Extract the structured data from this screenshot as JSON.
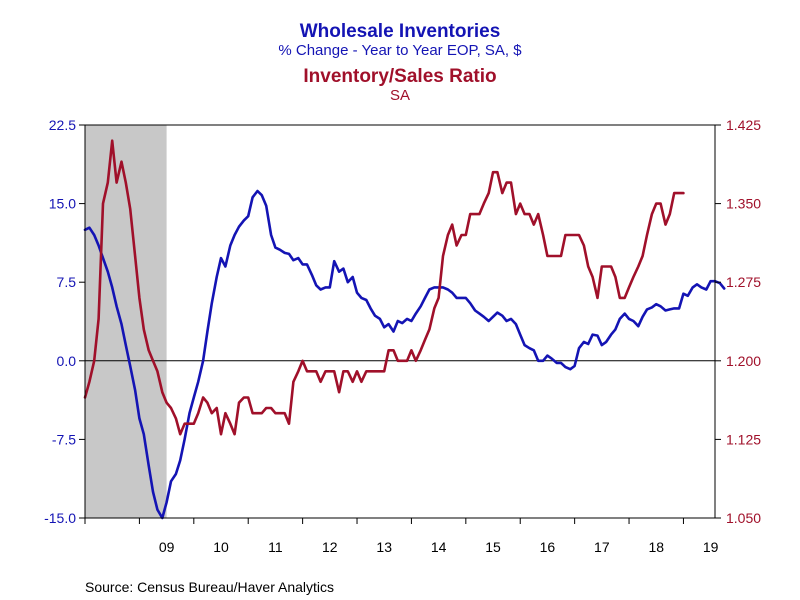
{
  "chart_data": {
    "type": "line",
    "title_lines": [
      {
        "text": "Wholesale Inventories",
        "color": "#1414b4",
        "role": "title"
      },
      {
        "text": "% Change - Year to Year     EOP, SA, $",
        "color": "#1414b4",
        "role": "subtitle"
      },
      {
        "text": "Inventory/Sales Ratio",
        "color": "#a0102a",
        "role": "title"
      },
      {
        "text": "SA",
        "color": "#a0102a",
        "role": "subtitle"
      }
    ],
    "source": "Source:  Census Bureau/Haver Analytics",
    "x_range": [
      2008.0,
      2019.58
    ],
    "x_ticks": [
      {
        "label": "09",
        "value": 2009.5
      },
      {
        "label": "10",
        "value": 2010.5
      },
      {
        "label": "11",
        "value": 2011.5
      },
      {
        "label": "12",
        "value": 2012.5
      },
      {
        "label": "13",
        "value": 2013.5
      },
      {
        "label": "14",
        "value": 2014.5
      },
      {
        "label": "15",
        "value": 2015.5
      },
      {
        "label": "16",
        "value": 2016.5
      },
      {
        "label": "17",
        "value": 2017.5
      },
      {
        "label": "18",
        "value": 2018.5
      },
      {
        "label": "19",
        "value": 2019.5
      }
    ],
    "recession_band": [
      2008.0,
      2009.5
    ],
    "y_left": {
      "range": [
        -15.0,
        22.5
      ],
      "ticks": [
        "22.5",
        "15.0",
        "7.5",
        "0.0",
        "-7.5",
        "-15.0"
      ],
      "color": "#1414b4"
    },
    "y_right": {
      "range": [
        1.05,
        1.425
      ],
      "ticks": [
        "1.425",
        "1.350",
        "1.275",
        "1.200",
        "1.125",
        "1.050"
      ],
      "color": "#a0102a"
    },
    "zero_line": 0.0,
    "series": [
      {
        "axis": "left",
        "color": "#1414b4",
        "points": [
          [
            2008.0,
            12.5
          ],
          [
            2008.08,
            12.7
          ],
          [
            2008.17,
            12.0
          ],
          [
            2008.25,
            11.0
          ],
          [
            2008.33,
            9.8
          ],
          [
            2008.42,
            8.5
          ],
          [
            2008.5,
            7.0
          ],
          [
            2008.58,
            5.2
          ],
          [
            2008.67,
            3.5
          ],
          [
            2008.75,
            1.5
          ],
          [
            2008.83,
            -0.5
          ],
          [
            2008.92,
            -2.8
          ],
          [
            2009.0,
            -5.5
          ],
          [
            2009.08,
            -7.0
          ],
          [
            2009.17,
            -10.0
          ],
          [
            2009.25,
            -12.5
          ],
          [
            2009.33,
            -14.2
          ],
          [
            2009.42,
            -15.0
          ],
          [
            2009.5,
            -13.5
          ],
          [
            2009.58,
            -11.5
          ],
          [
            2009.67,
            -10.8
          ],
          [
            2009.75,
            -9.5
          ],
          [
            2009.83,
            -7.5
          ],
          [
            2009.92,
            -5.0
          ],
          [
            2010.0,
            -3.5
          ],
          [
            2010.08,
            -2.0
          ],
          [
            2010.17,
            0.0
          ],
          [
            2010.25,
            2.8
          ],
          [
            2010.33,
            5.5
          ],
          [
            2010.42,
            8.0
          ],
          [
            2010.5,
            9.8
          ],
          [
            2010.58,
            9.0
          ],
          [
            2010.67,
            11.0
          ],
          [
            2010.75,
            12.0
          ],
          [
            2010.83,
            12.8
          ],
          [
            2010.92,
            13.4
          ],
          [
            2011.0,
            13.8
          ],
          [
            2011.08,
            15.6
          ],
          [
            2011.17,
            16.2
          ],
          [
            2011.25,
            15.8
          ],
          [
            2011.33,
            14.8
          ],
          [
            2011.42,
            12.0
          ],
          [
            2011.5,
            10.8
          ],
          [
            2011.58,
            10.6
          ],
          [
            2011.67,
            10.3
          ],
          [
            2011.75,
            10.2
          ],
          [
            2011.83,
            9.6
          ],
          [
            2011.92,
            9.8
          ],
          [
            2012.0,
            9.2
          ],
          [
            2012.08,
            9.2
          ],
          [
            2012.17,
            8.2
          ],
          [
            2012.25,
            7.2
          ],
          [
            2012.33,
            6.8
          ],
          [
            2012.42,
            7.0
          ],
          [
            2012.5,
            7.0
          ],
          [
            2012.58,
            9.5
          ],
          [
            2012.67,
            8.5
          ],
          [
            2012.75,
            8.8
          ],
          [
            2012.83,
            7.5
          ],
          [
            2012.92,
            8.0
          ],
          [
            2013.0,
            6.5
          ],
          [
            2013.08,
            6.0
          ],
          [
            2013.17,
            5.8
          ],
          [
            2013.25,
            5.0
          ],
          [
            2013.33,
            4.3
          ],
          [
            2013.42,
            4.0
          ],
          [
            2013.5,
            3.2
          ],
          [
            2013.58,
            3.5
          ],
          [
            2013.67,
            2.8
          ],
          [
            2013.75,
            3.8
          ],
          [
            2013.83,
            3.6
          ],
          [
            2013.92,
            4.0
          ],
          [
            2014.0,
            3.8
          ],
          [
            2014.08,
            4.5
          ],
          [
            2014.17,
            5.2
          ],
          [
            2014.25,
            6.0
          ],
          [
            2014.33,
            6.8
          ],
          [
            2014.42,
            7.0
          ],
          [
            2014.5,
            7.0
          ],
          [
            2014.58,
            7.0
          ],
          [
            2014.67,
            6.8
          ],
          [
            2014.75,
            6.5
          ],
          [
            2014.83,
            6.0
          ],
          [
            2014.92,
            6.0
          ],
          [
            2015.0,
            6.0
          ],
          [
            2015.08,
            5.5
          ],
          [
            2015.17,
            4.8
          ],
          [
            2015.25,
            4.5
          ],
          [
            2015.33,
            4.2
          ],
          [
            2015.42,
            3.8
          ],
          [
            2015.5,
            4.2
          ],
          [
            2015.58,
            4.6
          ],
          [
            2015.67,
            4.3
          ],
          [
            2015.75,
            3.8
          ],
          [
            2015.83,
            4.0
          ],
          [
            2015.92,
            3.5
          ],
          [
            2016.0,
            2.5
          ],
          [
            2016.08,
            1.5
          ],
          [
            2016.17,
            1.2
          ],
          [
            2016.25,
            1.0
          ],
          [
            2016.33,
            0.0
          ],
          [
            2016.42,
            0.0
          ],
          [
            2016.5,
            0.5
          ],
          [
            2016.58,
            0.2
          ],
          [
            2016.67,
            -0.2
          ],
          [
            2016.75,
            -0.2
          ],
          [
            2016.83,
            -0.6
          ],
          [
            2016.92,
            -0.8
          ],
          [
            2017.0,
            -0.5
          ],
          [
            2017.08,
            1.2
          ],
          [
            2017.17,
            1.8
          ],
          [
            2017.25,
            1.6
          ],
          [
            2017.33,
            2.5
          ],
          [
            2017.42,
            2.4
          ],
          [
            2017.5,
            1.5
          ],
          [
            2017.58,
            1.8
          ],
          [
            2017.67,
            2.5
          ],
          [
            2017.75,
            3.0
          ],
          [
            2017.83,
            4.0
          ],
          [
            2017.92,
            4.5
          ],
          [
            2018.0,
            4.0
          ],
          [
            2018.08,
            3.8
          ],
          [
            2018.17,
            3.3
          ],
          [
            2018.25,
            4.2
          ],
          [
            2018.33,
            4.9
          ],
          [
            2018.42,
            5.1
          ],
          [
            2018.5,
            5.4
          ],
          [
            2018.58,
            5.2
          ],
          [
            2018.67,
            4.8
          ],
          [
            2018.75,
            4.9
          ],
          [
            2018.83,
            5.0
          ],
          [
            2018.92,
            5.0
          ],
          [
            2019.0,
            6.4
          ],
          [
            2019.08,
            6.2
          ],
          [
            2019.17,
            7.0
          ],
          [
            2019.25,
            7.3
          ],
          [
            2019.33,
            7.0
          ],
          [
            2019.42,
            6.8
          ],
          [
            2019.5,
            7.6
          ],
          [
            2019.58,
            7.6
          ],
          [
            2019.67,
            7.4
          ],
          [
            2019.75,
            6.9
          ]
        ]
      },
      {
        "axis": "right",
        "color": "#a0102a",
        "points": [
          [
            2008.0,
            1.165
          ],
          [
            2008.08,
            1.18
          ],
          [
            2008.17,
            1.2
          ],
          [
            2008.25,
            1.24
          ],
          [
            2008.33,
            1.35
          ],
          [
            2008.42,
            1.37
          ],
          [
            2008.5,
            1.41
          ],
          [
            2008.58,
            1.37
          ],
          [
            2008.67,
            1.39
          ],
          [
            2008.75,
            1.37
          ],
          [
            2008.83,
            1.345
          ],
          [
            2008.92,
            1.3
          ],
          [
            2009.0,
            1.26
          ],
          [
            2009.08,
            1.23
          ],
          [
            2009.17,
            1.21
          ],
          [
            2009.25,
            1.2
          ],
          [
            2009.33,
            1.19
          ],
          [
            2009.42,
            1.17
          ],
          [
            2009.5,
            1.16
          ],
          [
            2009.58,
            1.155
          ],
          [
            2009.67,
            1.145
          ],
          [
            2009.75,
            1.13
          ],
          [
            2009.83,
            1.14
          ],
          [
            2009.92,
            1.14
          ],
          [
            2010.0,
            1.14
          ],
          [
            2010.08,
            1.15
          ],
          [
            2010.17,
            1.165
          ],
          [
            2010.25,
            1.16
          ],
          [
            2010.33,
            1.15
          ],
          [
            2010.42,
            1.155
          ],
          [
            2010.5,
            1.13
          ],
          [
            2010.58,
            1.15
          ],
          [
            2010.67,
            1.14
          ],
          [
            2010.75,
            1.13
          ],
          [
            2010.83,
            1.16
          ],
          [
            2010.92,
            1.165
          ],
          [
            2011.0,
            1.165
          ],
          [
            2011.08,
            1.15
          ],
          [
            2011.17,
            1.15
          ],
          [
            2011.25,
            1.15
          ],
          [
            2011.33,
            1.155
          ],
          [
            2011.42,
            1.155
          ],
          [
            2011.5,
            1.15
          ],
          [
            2011.58,
            1.15
          ],
          [
            2011.67,
            1.15
          ],
          [
            2011.75,
            1.14
          ],
          [
            2011.83,
            1.18
          ],
          [
            2011.92,
            1.19
          ],
          [
            2012.0,
            1.2
          ],
          [
            2012.08,
            1.19
          ],
          [
            2012.17,
            1.19
          ],
          [
            2012.25,
            1.19
          ],
          [
            2012.33,
            1.18
          ],
          [
            2012.42,
            1.19
          ],
          [
            2012.5,
            1.19
          ],
          [
            2012.58,
            1.19
          ],
          [
            2012.67,
            1.17
          ],
          [
            2012.75,
            1.19
          ],
          [
            2012.83,
            1.19
          ],
          [
            2012.92,
            1.18
          ],
          [
            2013.0,
            1.19
          ],
          [
            2013.08,
            1.18
          ],
          [
            2013.17,
            1.19
          ],
          [
            2013.25,
            1.19
          ],
          [
            2013.33,
            1.19
          ],
          [
            2013.42,
            1.19
          ],
          [
            2013.5,
            1.19
          ],
          [
            2013.58,
            1.21
          ],
          [
            2013.67,
            1.21
          ],
          [
            2013.75,
            1.2
          ],
          [
            2013.83,
            1.2
          ],
          [
            2013.92,
            1.2
          ],
          [
            2014.0,
            1.21
          ],
          [
            2014.08,
            1.2
          ],
          [
            2014.17,
            1.21
          ],
          [
            2014.25,
            1.22
          ],
          [
            2014.33,
            1.23
          ],
          [
            2014.42,
            1.25
          ],
          [
            2014.5,
            1.26
          ],
          [
            2014.58,
            1.3
          ],
          [
            2014.67,
            1.32
          ],
          [
            2014.75,
            1.33
          ],
          [
            2014.83,
            1.31
          ],
          [
            2014.92,
            1.32
          ],
          [
            2015.0,
            1.32
          ],
          [
            2015.08,
            1.34
          ],
          [
            2015.17,
            1.34
          ],
          [
            2015.25,
            1.34
          ],
          [
            2015.33,
            1.35
          ],
          [
            2015.42,
            1.36
          ],
          [
            2015.5,
            1.38
          ],
          [
            2015.58,
            1.38
          ],
          [
            2015.67,
            1.36
          ],
          [
            2015.75,
            1.37
          ],
          [
            2015.83,
            1.37
          ],
          [
            2015.92,
            1.34
          ],
          [
            2016.0,
            1.35
          ],
          [
            2016.08,
            1.34
          ],
          [
            2016.17,
            1.34
          ],
          [
            2016.25,
            1.33
          ],
          [
            2016.33,
            1.34
          ],
          [
            2016.42,
            1.32
          ],
          [
            2016.5,
            1.3
          ],
          [
            2016.58,
            1.3
          ],
          [
            2016.67,
            1.3
          ],
          [
            2016.75,
            1.3
          ],
          [
            2016.83,
            1.32
          ],
          [
            2016.92,
            1.32
          ],
          [
            2017.0,
            1.32
          ],
          [
            2017.08,
            1.32
          ],
          [
            2017.17,
            1.31
          ],
          [
            2017.25,
            1.29
          ],
          [
            2017.33,
            1.28
          ],
          [
            2017.42,
            1.26
          ],
          [
            2017.5,
            1.29
          ],
          [
            2017.58,
            1.29
          ],
          [
            2017.67,
            1.29
          ],
          [
            2017.75,
            1.28
          ],
          [
            2017.83,
            1.26
          ],
          [
            2017.92,
            1.26
          ],
          [
            2018.0,
            1.27
          ],
          [
            2018.08,
            1.28
          ],
          [
            2018.17,
            1.29
          ],
          [
            2018.25,
            1.3
          ],
          [
            2018.33,
            1.32
          ],
          [
            2018.42,
            1.34
          ],
          [
            2018.5,
            1.35
          ],
          [
            2018.58,
            1.35
          ],
          [
            2018.67,
            1.33
          ],
          [
            2018.75,
            1.34
          ],
          [
            2018.83,
            1.36
          ],
          [
            2018.92,
            1.36
          ],
          [
            2019.0,
            1.36
          ]
        ]
      }
    ]
  }
}
